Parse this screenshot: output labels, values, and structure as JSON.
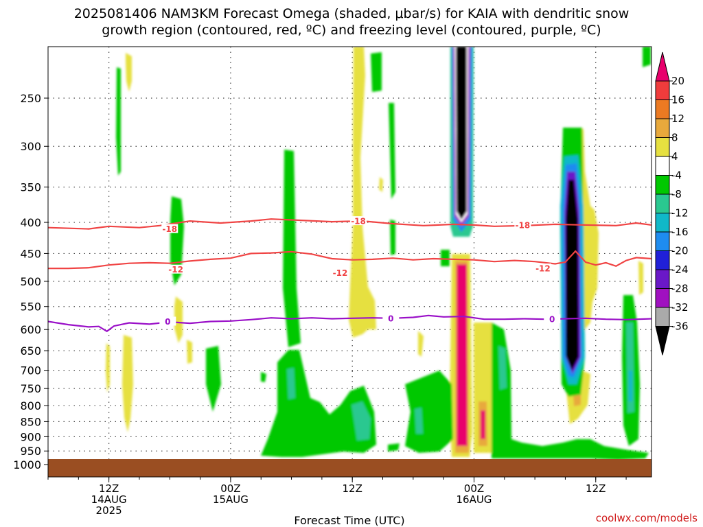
{
  "title_line1": "2025081406 NAM3KM Forecast Omega (shaded, μbar/s) for KAIA with dendritic snow",
  "title_line2": "growth region (contoured, red, ºC) and freezing level (contoured, purple, ºC)",
  "credit": "coolwx.com/models",
  "chart_data": {
    "type": "time-height cross section",
    "xlabel": "Forecast Time (UTC)",
    "x_ticks": [
      {
        "t": 6,
        "lines": [
          "12Z",
          "14AUG",
          "2025"
        ]
      },
      {
        "t": 18,
        "lines": [
          "00Z",
          "15AUG"
        ]
      },
      {
        "t": 30,
        "lines": [
          "12Z",
          ""
        ]
      },
      {
        "t": 42,
        "lines": [
          "00Z",
          "16AUG"
        ]
      },
      {
        "t": 54,
        "lines": [
          "12Z",
          ""
        ]
      }
    ],
    "x_range": [
      0,
      59.5
    ],
    "y_axis": "pressure (hPa), log scale",
    "y_range": [
      1050,
      200
    ],
    "y_ticks": [
      250,
      300,
      350,
      400,
      450,
      500,
      550,
      600,
      650,
      700,
      750,
      800,
      850,
      900,
      950,
      1000
    ],
    "ground_level": 975,
    "colorbar": {
      "levels": [
        "20",
        "16",
        "12",
        "8",
        "4",
        "-4",
        "-8",
        "-12",
        "-16",
        "-20",
        "-24",
        "-28",
        "-32",
        "-36"
      ],
      "colors": [
        "#e8006c",
        "#f03c3c",
        "#ec7a22",
        "#e8a93c",
        "#e6e040",
        "#ffffff",
        "#00c800",
        "#2ac890",
        "#10b8c8",
        "#1e8cf0",
        "#2020d8",
        "#6a18c8",
        "#a010c0",
        "#aaaaaa",
        "#000000"
      ]
    },
    "contours": [
      {
        "name": "-18",
        "color": "#f04444",
        "points": [
          [
            0,
            408
          ],
          [
            4,
            410
          ],
          [
            6,
            406
          ],
          [
            9,
            408
          ],
          [
            11,
            405
          ],
          [
            14,
            398
          ],
          [
            17,
            401
          ],
          [
            20,
            398
          ],
          [
            22,
            395
          ],
          [
            25,
            397
          ],
          [
            28,
            399
          ],
          [
            31,
            398
          ],
          [
            34,
            402
          ],
          [
            37,
            405
          ],
          [
            40,
            403
          ],
          [
            42,
            404
          ],
          [
            44,
            406
          ],
          [
            47,
            405
          ],
          [
            50,
            403
          ],
          [
            53,
            404
          ],
          [
            56,
            405
          ],
          [
            58,
            401
          ],
          [
            59.5,
            404
          ]
        ],
        "labels": [
          [
            12,
            410
          ],
          [
            30.6,
            398
          ],
          [
            46.8,
            404
          ]
        ]
      },
      {
        "name": "-12",
        "color": "#f04444",
        "points": [
          [
            0,
            476
          ],
          [
            2,
            476
          ],
          [
            4,
            475
          ],
          [
            6,
            470
          ],
          [
            8,
            467
          ],
          [
            10,
            466
          ],
          [
            12,
            467
          ],
          [
            14,
            463
          ],
          [
            16,
            460
          ],
          [
            18,
            458
          ],
          [
            19,
            454
          ],
          [
            20,
            450
          ],
          [
            22,
            449
          ],
          [
            24,
            447
          ],
          [
            26,
            451
          ],
          [
            28,
            459
          ],
          [
            30,
            461
          ],
          [
            32,
            460
          ],
          [
            34,
            458
          ],
          [
            36,
            461
          ],
          [
            38,
            459
          ],
          [
            40,
            460
          ],
          [
            42,
            461
          ],
          [
            44,
            464
          ],
          [
            46,
            462
          ],
          [
            48,
            464
          ],
          [
            50,
            468
          ],
          [
            51,
            465
          ],
          [
            52,
            446
          ],
          [
            53,
            465
          ],
          [
            54,
            470
          ],
          [
            55,
            466
          ],
          [
            56,
            472
          ],
          [
            57,
            462
          ],
          [
            58,
            457
          ],
          [
            59.5,
            459
          ]
        ],
        "labels": [
          [
            12.6,
            478
          ],
          [
            28.8,
            484
          ],
          [
            48.8,
            476
          ]
        ]
      },
      {
        "name": "0",
        "color": "#9a10c8",
        "points": [
          [
            0,
            582
          ],
          [
            2,
            589
          ],
          [
            4,
            594
          ],
          [
            5,
            593
          ],
          [
            5.8,
            604
          ],
          [
            6.5,
            592
          ],
          [
            8,
            585
          ],
          [
            10,
            588
          ],
          [
            12,
            583
          ],
          [
            14,
            586
          ],
          [
            16,
            582
          ],
          [
            18,
            581
          ],
          [
            20,
            578
          ],
          [
            22,
            574
          ],
          [
            24,
            576
          ],
          [
            26,
            574
          ],
          [
            28,
            576
          ],
          [
            30,
            575
          ],
          [
            32,
            574
          ],
          [
            34,
            575
          ],
          [
            36,
            573
          ],
          [
            37.5,
            569
          ],
          [
            39,
            572
          ],
          [
            41,
            571
          ],
          [
            43,
            577
          ],
          [
            45,
            577
          ],
          [
            47,
            576
          ],
          [
            49,
            577
          ],
          [
            51,
            576
          ],
          [
            53,
            575
          ],
          [
            55,
            577
          ],
          [
            57,
            578
          ],
          [
            59.5,
            576
          ]
        ],
        "labels": [
          [
            11.8,
            582
          ],
          [
            33.8,
            575
          ],
          [
            49.7,
            577
          ]
        ]
      }
    ]
  }
}
